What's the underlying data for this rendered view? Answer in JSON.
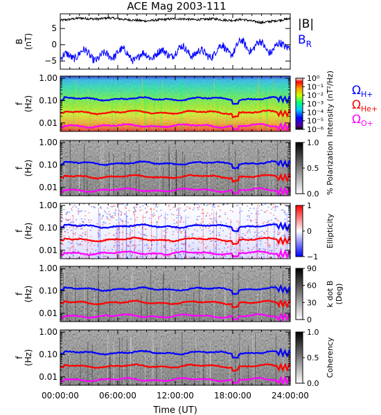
{
  "title": "ACE Mag 2003-111",
  "xaxis": {
    "label": "Time (UT)",
    "ticks": [
      "00:00:00",
      "06:00:00",
      "12:00:00",
      "18:00:00",
      "24:00:00"
    ]
  },
  "colors": {
    "B_total": "#000000",
    "B_R": "#0000ff",
    "H_plus": "#0000ff",
    "He_plus": "#ff0000",
    "O_plus": "#ff00ff"
  },
  "chart_data": [
    {
      "type": "line",
      "panel": "magnetic-field",
      "ylabel_lines": [
        "B",
        "(nT)"
      ],
      "ylim": [
        -7.5,
        9.5
      ],
      "yticks": [
        -5,
        0,
        5
      ],
      "xlim_hours": [
        0,
        24
      ],
      "series": [
        {
          "name": "|B|",
          "color": "#000000",
          "x": [
            0,
            1,
            2,
            3,
            4,
            5,
            6,
            7,
            8,
            9,
            10,
            11,
            12,
            13,
            14,
            15,
            16,
            17,
            18,
            19,
            20,
            21,
            22,
            23,
            24
          ],
          "values": [
            7.5,
            7.8,
            8.2,
            8.0,
            7.9,
            8.3,
            8.0,
            7.7,
            7.5,
            7.3,
            7.6,
            7.8,
            8.0,
            7.9,
            7.7,
            7.8,
            8.0,
            7.6,
            7.5,
            7.8,
            7.3,
            6.8,
            7.2,
            7.6,
            8.0
          ]
        },
        {
          "name": "B_R",
          "color": "#0000ff",
          "x": [
            0,
            1,
            2,
            3,
            4,
            5,
            6,
            7,
            8,
            9,
            10,
            11,
            12,
            13,
            14,
            15,
            16,
            17,
            18,
            19,
            20,
            21,
            22,
            23,
            24
          ],
          "values": [
            -4.5,
            -3.5,
            -2.5,
            -3.0,
            -4.0,
            -3.5,
            -2.0,
            -3.0,
            -4.0,
            -3.5,
            -2.5,
            -3.0,
            -2.0,
            -1.5,
            -2.5,
            -3.0,
            -2.5,
            -1.0,
            -2.0,
            0.5,
            -1.0,
            0.0,
            -1.5,
            -0.5,
            0.5
          ]
        }
      ],
      "legend": [
        "|B|",
        "B_R"
      ]
    },
    {
      "type": "heatmap",
      "panel": "power-spectra",
      "ylabel_lines": [
        "f",
        "(Hz)"
      ],
      "yscale": "log",
      "ylim": [
        0.004,
        1.2
      ],
      "yticks": [
        "1.00",
        "0.10",
        "0.01"
      ],
      "colorbar_label": "Intensity (nT²/Hz)",
      "colorbar_ticks": [
        "10⁰",
        "10⁻¹",
        "10⁻²",
        "10⁻³",
        "10⁻⁴",
        "10⁻⁵",
        "10⁻⁶"
      ],
      "legend": [
        "Ω_H+",
        "Ω_He+",
        "Ω_O+"
      ]
    },
    {
      "type": "heatmap",
      "panel": "polarization",
      "ylabel_lines": [
        "f",
        "(Hz)"
      ],
      "yscale": "log",
      "yticks": [
        "1.00",
        "0.10",
        "0.01"
      ],
      "colorbar_label": "% Polarization",
      "colorbar_ticks": [
        "1.0",
        "0.5",
        "0.0"
      ]
    },
    {
      "type": "heatmap",
      "panel": "ellipticity",
      "ylabel_lines": [
        "f",
        "(Hz)"
      ],
      "yscale": "log",
      "yticks": [
        "1.00",
        "0.10",
        "0.01"
      ],
      "colorbar_label": "Ellipticity",
      "colorbar_ticks": [
        "1",
        "0",
        "−1"
      ]
    },
    {
      "type": "heatmap",
      "panel": "k-dot-b",
      "ylabel_lines": [
        "f",
        "(Hz)"
      ],
      "yscale": "log",
      "yticks": [
        "1.00",
        "0.10",
        "0.01"
      ],
      "colorbar_label_lines": [
        "k dot B",
        "(Deg)"
      ],
      "colorbar_ticks": [
        "90",
        "60",
        "30",
        "0"
      ]
    },
    {
      "type": "heatmap",
      "panel": "coherency",
      "ylabel_lines": [
        "f",
        "(Hz)"
      ],
      "yscale": "log",
      "yticks": [
        "1.00",
        "0.10",
        "0.01"
      ],
      "colorbar_label": "Coherency",
      "colorbar_ticks": [
        "1.0",
        "0.5",
        "0.0"
      ]
    }
  ],
  "gyrofrequencies_hz": {
    "H_plus": 0.12,
    "He_plus": 0.03,
    "O_plus": 0.0075
  }
}
